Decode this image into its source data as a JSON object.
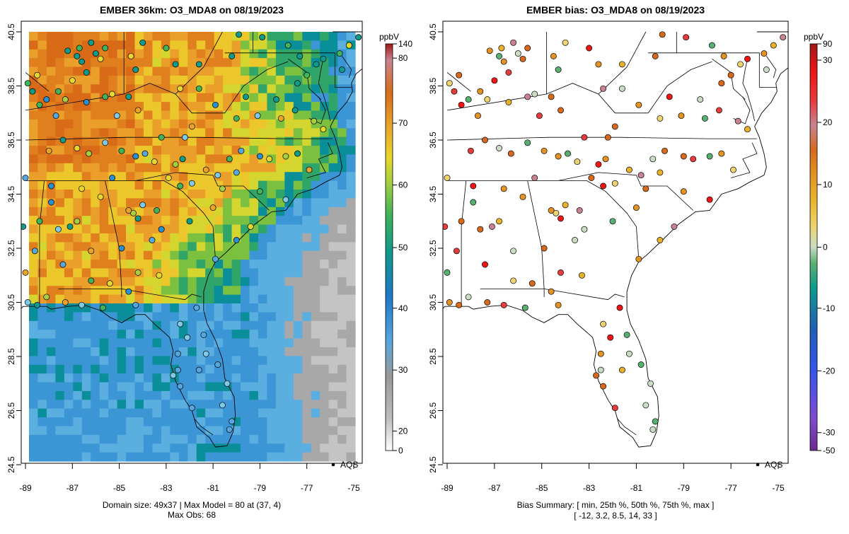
{
  "left_panel": {
    "title": "EMBER 36km: O3_MDA8 on 08/19/2023",
    "footer_line1": "Domain size: 49x37 | Max Model = 80 at (37, 4)",
    "footer_line2": "Max Obs: 68",
    "legend_label": "AQS",
    "colorbar_unit": "ppbV",
    "colorbar_ticks": [
      "140",
      "80",
      "70",
      "60",
      "50",
      "40",
      "30",
      "20",
      "0"
    ]
  },
  "right_panel": {
    "title": "EMBER bias: O3_MDA8 on 08/19/2023",
    "footer_line1": "Bias Summary: [ min, 25th %, 50th %, 75th %, max ]",
    "footer_line2": "[ -12,   3.2,   8.5,   14,   33 ]",
    "legend_label": "AQS",
    "colorbar_unit": "ppbV",
    "colorbar_ticks": [
      "90",
      "30",
      "20",
      "10",
      "0",
      "-10",
      "-20",
      "-30",
      "-50"
    ]
  },
  "axes": {
    "x_ticks": [
      "-89",
      "-87",
      "-85",
      "-83",
      "-81",
      "-79",
      "-77",
      "-75"
    ],
    "y_ticks": [
      "40.5",
      "38.5",
      "36.5",
      "34.5",
      "32.5",
      "30.5",
      "28.5",
      "26.5",
      "24.5"
    ]
  },
  "colors": {
    "conc_scale": [
      "#ffffff",
      "#bdbdbd",
      "#9a9a9a",
      "#56a7e0",
      "#1f78c8",
      "#0f9a8c",
      "#41b35a",
      "#a6cf3f",
      "#e8d62c",
      "#e9a22a",
      "#d86d1a",
      "#c98291",
      "#a01818"
    ],
    "bias_scale": [
      "#6a2c91",
      "#7f4bd0",
      "#3355e8",
      "#1f5fb8",
      "#1a7fb0",
      "#0f9a8c",
      "#58b070",
      "#c9dcc4",
      "#eed470",
      "#e8b32a",
      "#e39224",
      "#d8691c",
      "#c98291",
      "#e63c3c",
      "#f01515",
      "#a01818"
    ]
  }
}
